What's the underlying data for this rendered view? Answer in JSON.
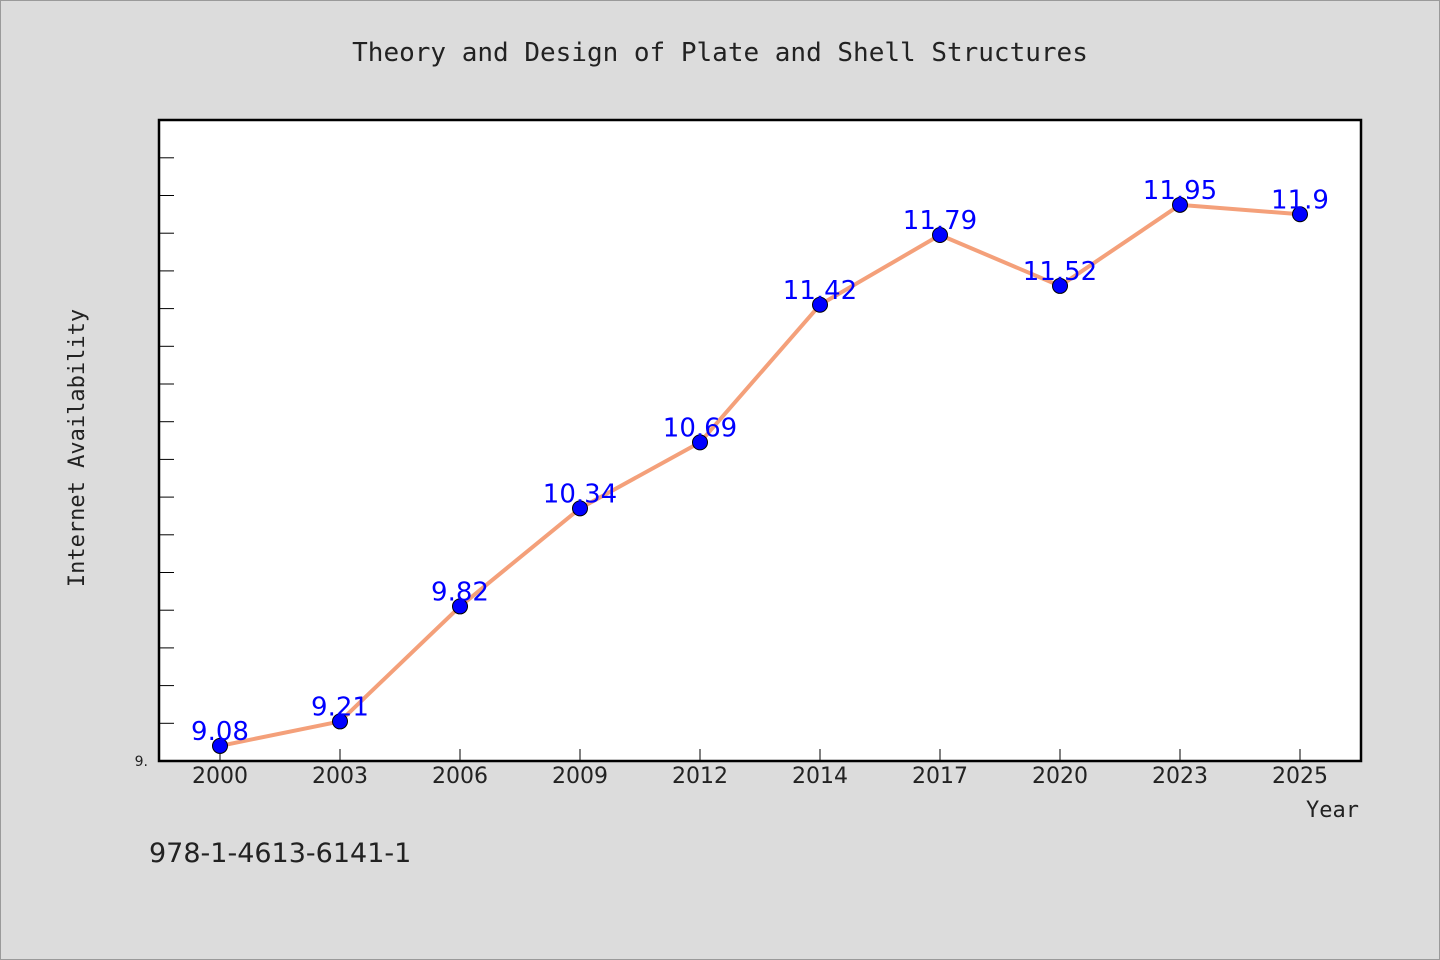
{
  "chart_data": {
    "type": "line",
    "title": "Theory and Design of Plate and Shell Structures",
    "xlabel": "Year",
    "ylabel": "Internet Availability",
    "categories": [
      "2000",
      "2003",
      "2006",
      "2009",
      "2012",
      "2014",
      "2017",
      "2020",
      "2023",
      "2025"
    ],
    "series": [
      {
        "values": [
          9.08,
          9.21,
          9.82,
          10.34,
          10.69,
          11.42,
          11.79,
          11.52,
          11.95,
          11.9
        ],
        "data_labels": [
          "9.08",
          "9.21",
          "9.82",
          "10.34",
          "10.69",
          "11.42",
          "11.79",
          "11.52",
          "11.95",
          "11.9"
        ],
        "line_color": "#f4a07a",
        "marker_color": "#0000ff"
      }
    ],
    "ylim": [
      9.0,
      12.4
    ],
    "ytick_label": "9.",
    "grid": false,
    "legend": "none"
  },
  "footer": {
    "isbn": "978-1-4613-6141-1"
  }
}
